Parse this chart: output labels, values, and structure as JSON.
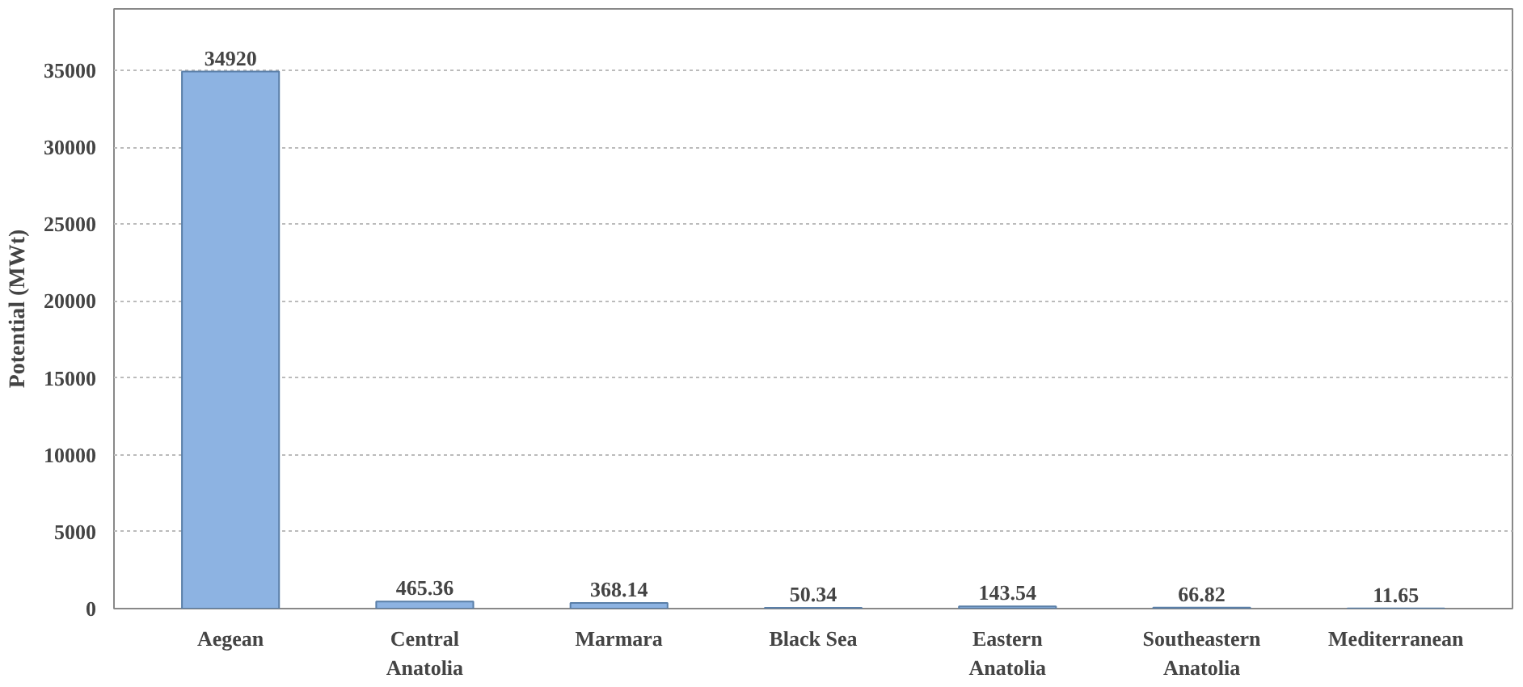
{
  "chart_data": {
    "type": "bar",
    "ylabel": "Potential (MWt)",
    "categories": [
      "Aegean",
      "Central\nAnatolia",
      "Marmara",
      "Black Sea",
      "Eastern\nAnatolia",
      "Southeastern\nAnatolia",
      "Mediterranean"
    ],
    "values": [
      34920,
      465.36,
      368.14,
      50.34,
      143.54,
      66.82,
      11.65
    ],
    "color": "#8db3e2",
    "ylim": [
      0,
      39000
    ],
    "yticks": [
      0,
      5000,
      10000,
      15000,
      20000,
      25000,
      30000,
      35000
    ],
    "grid": "y",
    "data_labels": true
  }
}
